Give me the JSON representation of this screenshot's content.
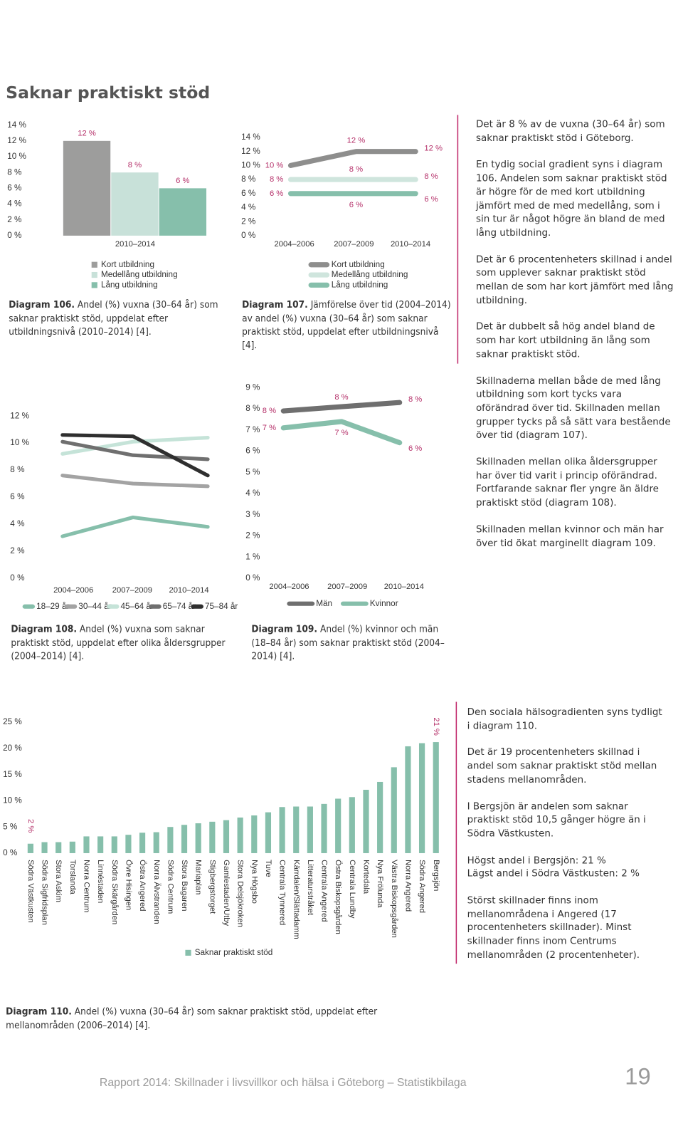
{
  "title": "Saknar praktiskt stöd",
  "chart_data": [
    {
      "type": "bar",
      "caption_label": "Diagram 106.",
      "caption": "Andel (%) vuxna (30–64 år) som saknar praktiskt stöd, uppdelat efter utbildningsnivå (2010–2014) [4].",
      "categories": [
        "2010–2014"
      ],
      "series": [
        {
          "name": "Kort utbildning",
          "color": "#9d9d9c",
          "values": [
            12
          ],
          "value_labels": [
            "12 %"
          ]
        },
        {
          "name": "Medellång utbildning",
          "color": "#c8e1d9",
          "values": [
            8
          ],
          "value_labels": [
            "8 %"
          ]
        },
        {
          "name": "Lång utbildning",
          "color": "#86bfab",
          "values": [
            6
          ],
          "value_labels": [
            "6 %"
          ]
        }
      ],
      "ylim": [
        0,
        14
      ],
      "yticks": [
        {
          "value": 0,
          "label": "0 %"
        },
        {
          "value": 2,
          "label": "2 %"
        },
        {
          "value": 4,
          "label": "4 %"
        },
        {
          "value": 6,
          "label": "6 %"
        },
        {
          "value": 8,
          "label": "8 %"
        },
        {
          "value": 10,
          "label": "10 %"
        },
        {
          "value": 12,
          "label": "12 %"
        },
        {
          "value": 14,
          "label": "14 %"
        }
      ]
    },
    {
      "type": "line",
      "caption_label": "Diagram 107.",
      "caption": "Jämförelse över tid (2004–2014) av andel (%) vuxna (30–64 år) som saknar praktiskt stöd, uppdelat efter utbildningsnivå [4].",
      "categories": [
        "2004–2006",
        "2007–2009",
        "2010–2014"
      ],
      "series": [
        {
          "name": "Kort utbildning",
          "color": "#8e8e8d",
          "values": [
            10,
            12,
            12
          ],
          "value_labels": [
            "10 %",
            "12 %",
            "12 %"
          ]
        },
        {
          "name": "Medellång utbildning",
          "color": "#cfe5dd",
          "values": [
            8,
            8,
            8
          ],
          "value_labels": [
            "8 %",
            "8 %",
            "8 %"
          ]
        },
        {
          "name": "Lång utbildning",
          "color": "#86bfab",
          "values": [
            6,
            6,
            6
          ],
          "value_labels": [
            "6 %",
            "6 %",
            "6 %"
          ]
        }
      ],
      "ylim": [
        0,
        14
      ],
      "yticks": [
        {
          "value": 0,
          "label": "0 %"
        },
        {
          "value": 2,
          "label": "2 %"
        },
        {
          "value": 4,
          "label": "4 %"
        },
        {
          "value": 6,
          "label": "6 %"
        },
        {
          "value": 8,
          "label": "8 %"
        },
        {
          "value": 10,
          "label": "10 %"
        },
        {
          "value": 12,
          "label": "12 %"
        },
        {
          "value": 14,
          "label": "14 %"
        }
      ]
    },
    {
      "type": "line",
      "caption_label": "Diagram 108.",
      "caption": "Andel (%) vuxna som saknar praktiskt stöd, uppdelat efter olika åldersgrupper (2004–2014) [4].",
      "categories": [
        "2004–2006",
        "2007–2009",
        "2010–2014"
      ],
      "series": [
        {
          "name": "18–29 år",
          "color": "#86bfab",
          "values": [
            3.1,
            4.5,
            3.8
          ]
        },
        {
          "name": "30–44 år",
          "color": "#a3a3a3",
          "values": [
            7.6,
            7.0,
            6.8
          ]
        },
        {
          "name": "45–64 år",
          "color": "#c5e3d8",
          "values": [
            9.2,
            10.1,
            10.4
          ]
        },
        {
          "name": "65–74 år",
          "color": "#6f6f6f",
          "values": [
            10.1,
            9.1,
            8.8
          ]
        },
        {
          "name": "75–84 år",
          "color": "#2f2f2f",
          "values": [
            10.6,
            10.5,
            7.6
          ]
        }
      ],
      "ylim": [
        0,
        12
      ],
      "yticks": [
        {
          "value": 0,
          "label": "0 %"
        },
        {
          "value": 2,
          "label": "2 %"
        },
        {
          "value": 4,
          "label": "4 %"
        },
        {
          "value": 6,
          "label": "6 %"
        },
        {
          "value": 8,
          "label": "8 %"
        },
        {
          "value": 10,
          "label": "10 %"
        },
        {
          "value": 12,
          "label": "12 %"
        }
      ]
    },
    {
      "type": "line",
      "caption_label": "Diagram 109.",
      "caption": "Andel (%) kvinnor och män (18–84 år) som saknar praktiskt stöd (2004–2014) [4].",
      "categories": [
        "2004–2006",
        "2007–2009",
        "2010–2014"
      ],
      "series": [
        {
          "name": "Män",
          "color": "#6f6f6f",
          "values": [
            7.9,
            8.1,
            8.3
          ],
          "value_labels": [
            "8 %",
            "8 %",
            "8 %"
          ]
        },
        {
          "name": "Kvinnor",
          "color": "#86bfab",
          "values": [
            7.1,
            7.4,
            6.4
          ],
          "value_labels": [
            "7 %",
            "7 %",
            "6 %"
          ]
        }
      ],
      "ylim": [
        0,
        9
      ],
      "yticks": [
        {
          "value": 0,
          "label": "0 %"
        },
        {
          "value": 1,
          "label": "1 %"
        },
        {
          "value": 2,
          "label": "2 %"
        },
        {
          "value": 3,
          "label": "3 %"
        },
        {
          "value": 4,
          "label": "4 %"
        },
        {
          "value": 5,
          "label": "5 %"
        },
        {
          "value": 6,
          "label": "6 %"
        },
        {
          "value": 7,
          "label": "7 %"
        },
        {
          "value": 8,
          "label": "8 %"
        },
        {
          "value": 9,
          "label": "9 %"
        }
      ]
    },
    {
      "type": "bar",
      "caption_label": "Diagram 110.",
      "caption": "Andel (%) vuxna (30–64 år) som saknar praktiskt stöd, uppdelat efter mellanområden (2006–2014) [4].",
      "categories": [
        "Södra Västkusten",
        "Södra Sigfridsplan",
        "Stora Askim",
        "Torslanda",
        "Norra Centrum",
        "Linnéstaden",
        "Södra Skärgården",
        "Övre Hisingen",
        "Östra Angered",
        "Norra Älvstranden",
        "Södra Centrum",
        "Stora Bagaren",
        "Mariaplan",
        "Stigbergstorget",
        "Gamlestaden/Utby",
        "Stora Delsjökroken",
        "Nya Högsbo",
        "Tuve",
        "Centrala Tynnered",
        "Kärrdalen/Slättadamm",
        "Litteraturstråket",
        "Centrala Angered",
        "Östra Biskopsgården",
        "Centrala Lundby",
        "Kortedala",
        "Nya Frölunda",
        "Västra Biskopsgården",
        "Norra Angered",
        "Södra Angered",
        "Bergsjön"
      ],
      "series": [
        {
          "name": "Saknar praktiskt stöd",
          "color": "#86bfab",
          "values": [
            1.8,
            2.1,
            2.1,
            2.2,
            3.2,
            3.2,
            3.2,
            3.5,
            3.9,
            4.0,
            5.0,
            5.4,
            5.7,
            6.0,
            6.3,
            6.8,
            7.2,
            7.8,
            8.8,
            8.9,
            8.9,
            9.4,
            10.4,
            10.7,
            12.1,
            13.6,
            16.4,
            20.4,
            21.0,
            21.2
          ],
          "value_labels": [
            "2 %",
            null,
            null,
            null,
            null,
            null,
            null,
            null,
            null,
            null,
            null,
            null,
            null,
            null,
            null,
            null,
            null,
            null,
            null,
            null,
            null,
            null,
            null,
            null,
            null,
            null,
            null,
            null,
            null,
            "21 %"
          ]
        }
      ],
      "ylim": [
        0,
        25
      ],
      "yticks": [
        {
          "value": 0,
          "label": "0 %"
        },
        {
          "value": 5,
          "label": "5 %"
        },
        {
          "value": 10,
          "label": "10 %"
        },
        {
          "value": 15,
          "label": "15 %"
        },
        {
          "value": 20,
          "label": "20 %"
        },
        {
          "value": 25,
          "label": "25 %"
        }
      ]
    }
  ],
  "text_blocks": [
    [
      [
        "Det är 8 % av de vuxna (30–64 år) som saknar praktiskt stöd i Göteborg."
      ],
      [
        "En tydig social gradient syns i diagram 106. Andelen som saknar praktiskt stöd är högre för de med kort utbildning jämfört med de med medellång, som i sin tur är något högre än bland de med lång utbildning."
      ],
      [
        "Det är 6 procentenheters skillnad i andel som upplever saknar praktiskt stöd mellan de som har kort jämfört med lång utbildning."
      ],
      [
        "Det är dubbelt så hög andel bland de som har kort utbildning än lång som saknar praktiskt stöd."
      ],
      [
        "Skillnaderna mellan både de med lång utbildning som kort tycks vara oförändrad över tid. Skillnaden mellan grupper tycks på så sätt vara bestående över tid (diagram 107)."
      ],
      [
        "Skillnaden mellan olika åldersgrupper har över tid varit i princip oförändrad. Fortfarande saknar fler yngre än äldre praktiskt stöd (diagram 108)."
      ],
      [
        "Skillnaden mellan kvinnor och män har över tid ökat marginellt diagram 109."
      ]
    ],
    [
      [
        "Den sociala hälsogradienten syns tydligt i diagram 110."
      ],
      [
        "Det är 19 procentenheters skillnad i andel som saknar praktiskt stöd mellan stadens mellanområden."
      ],
      [
        "I Bergsjön är andelen som saknar praktiskt stöd 10,5 gånger högre än i Södra Västkusten."
      ],
      [
        "Högst andel i Bergsjön: 21 %",
        "Lägst andel i Södra Västkusten: 2 %"
      ],
      [
        "Störst skillnader finns inom mellanområdena i Angered (17 procentenheters skillnader). Minst skillnader finns inom Centrums mellanområden (2 procentenheter)."
      ]
    ]
  ],
  "footer": {
    "text": "Rapport 2014: Skillnader i livsvillkor och hälsa i Göteborg – Statistikbilaga",
    "page": "19"
  }
}
